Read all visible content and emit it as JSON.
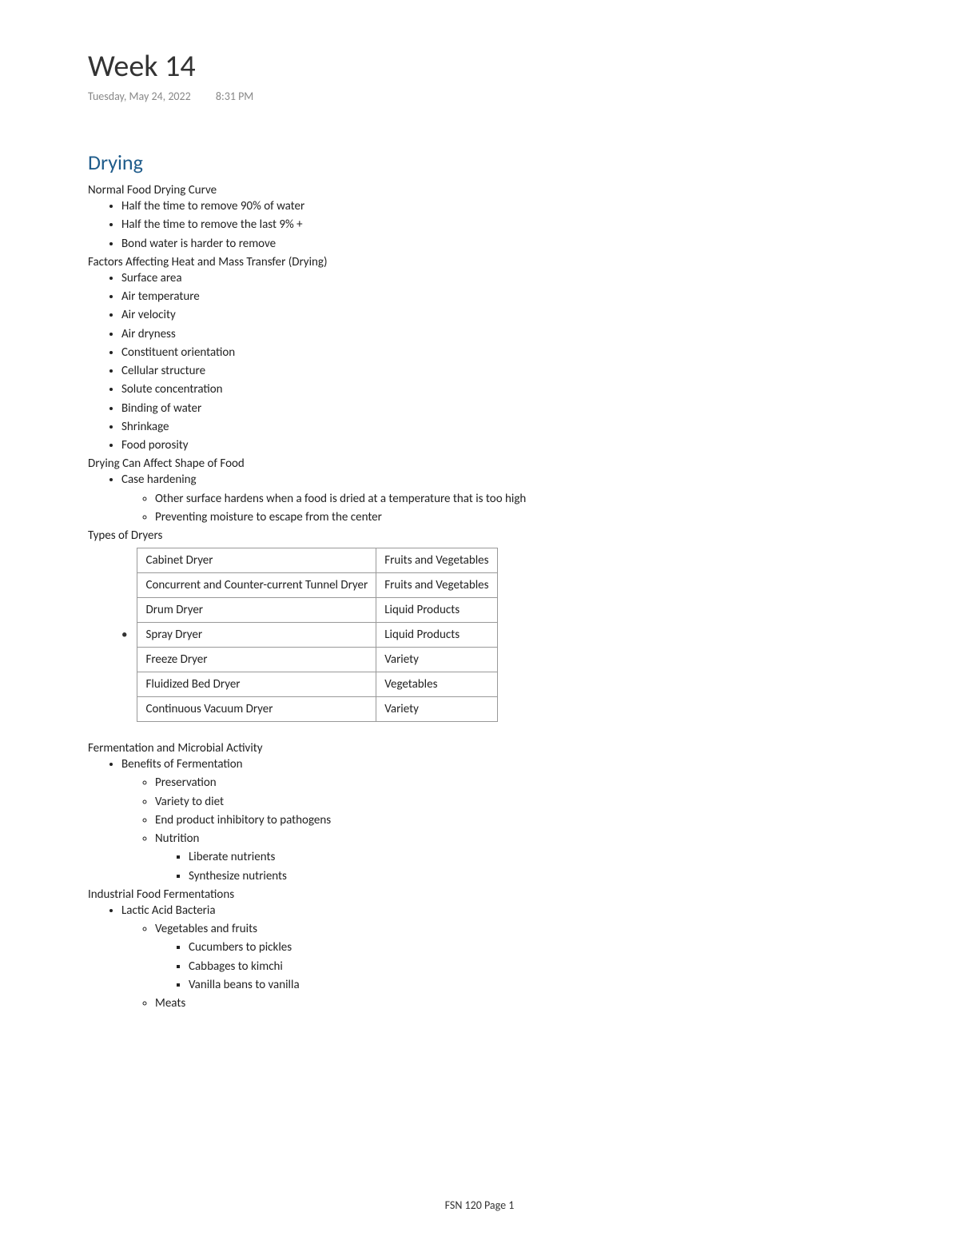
{
  "header": {
    "title": "Week 14",
    "date": "Tuesday, May 24, 2022",
    "time": "8:31 PM"
  },
  "section": {
    "heading": "Drying"
  },
  "normalCurve": {
    "label": "Normal Food Drying Curve",
    "items": [
      "Half the time to remove 90% of water",
      "Half the time to remove the last 9% +",
      "Bond water is harder to remove"
    ]
  },
  "factors": {
    "label": "Factors Affecting Heat and Mass Transfer (Drying)",
    "items": [
      "Surface area",
      "Air temperature",
      "Air velocity",
      "Air dryness",
      "Constituent orientation",
      "Cellular structure",
      "Solute concentration",
      "Binding of water",
      "Shrinkage",
      "Food porosity"
    ]
  },
  "shape": {
    "label": "Drying Can Affect Shape of Food",
    "item": "Case hardening",
    "sub": [
      "Other surface hardens when a food is dried at a temperature that is too high",
      "Preventing moisture to escape from the center"
    ]
  },
  "dryers": {
    "label": "Types of Dryers",
    "rows": [
      [
        "Cabinet Dryer",
        "Fruits and Vegetables"
      ],
      [
        "Concurrent and Counter-current Tunnel Dryer",
        "Fruits and Vegetables"
      ],
      [
        "Drum Dryer",
        "Liquid Products"
      ],
      [
        "Spray Dryer",
        "Liquid Products"
      ],
      [
        "Freeze Dryer",
        "Variety"
      ],
      [
        "Fluidized Bed Dryer",
        "Vegetables"
      ],
      [
        "Continuous Vacuum Dryer",
        "Variety"
      ]
    ]
  },
  "fermentation": {
    "label": "Fermentation and Microbial Activity",
    "benefitsLabel": "Benefits of Fermentation",
    "benefits": {
      "a": "Preservation",
      "b": "Variety to diet",
      "c": "End product inhibitory to pathogens",
      "d": "Nutrition",
      "dSub": [
        "Liberate nutrients",
        "Synthesize nutrients"
      ]
    }
  },
  "industrial": {
    "label": "Industrial Food Fermentations",
    "item": "Lactic Acid Bacteria",
    "vegLabel": "Vegetables and fruits",
    "veg": [
      "Cucumbers to pickles",
      "Cabbages to kimchi",
      "Vanilla beans to vanilla"
    ],
    "meats": "Meats"
  },
  "footer": {
    "text": "FSN 120 Page 1"
  }
}
